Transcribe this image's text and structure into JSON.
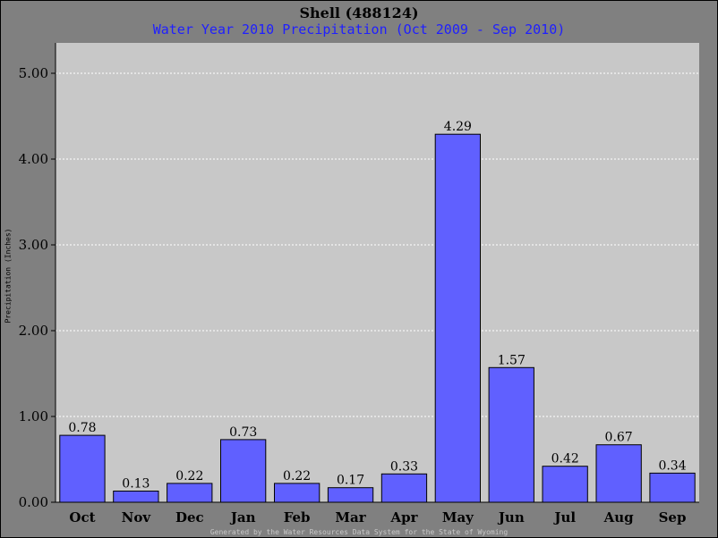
{
  "chart_data": {
    "type": "bar",
    "title": "Shell (488124)",
    "subtitle": "Water Year 2010 Precipitation (Oct 2009 - Sep 2010)",
    "ylabel": "Precipitation (Inches)",
    "xlabel": "",
    "categories": [
      "Oct",
      "Nov",
      "Dec",
      "Jan",
      "Feb",
      "Mar",
      "Apr",
      "May",
      "Jun",
      "Jul",
      "Aug",
      "Sep"
    ],
    "values": [
      0.78,
      0.13,
      0.22,
      0.73,
      0.22,
      0.17,
      0.33,
      4.29,
      1.57,
      0.42,
      0.67,
      0.34
    ],
    "data_labels": [
      "0.78",
      "0.13",
      "0.22",
      "0.73",
      "0.22",
      "0.17",
      "0.33",
      "4.29",
      "1.57",
      "0.42",
      "0.67",
      "0.34"
    ],
    "ylim": [
      0,
      5.0
    ],
    "yticks": [
      0,
      1,
      2,
      3,
      4,
      5
    ],
    "ytick_labels": [
      "0.00",
      "1.00",
      "2.00",
      "3.00",
      "4.00",
      "5.00"
    ],
    "grid": true,
    "colors": {
      "bar": "#6060ff",
      "plot_bg": "#c8c8c8",
      "page_bg": "#808080",
      "subtitle": "#1f1fff"
    }
  },
  "footer": "Generated by the Water Resources Data System for the State of Wyoming"
}
